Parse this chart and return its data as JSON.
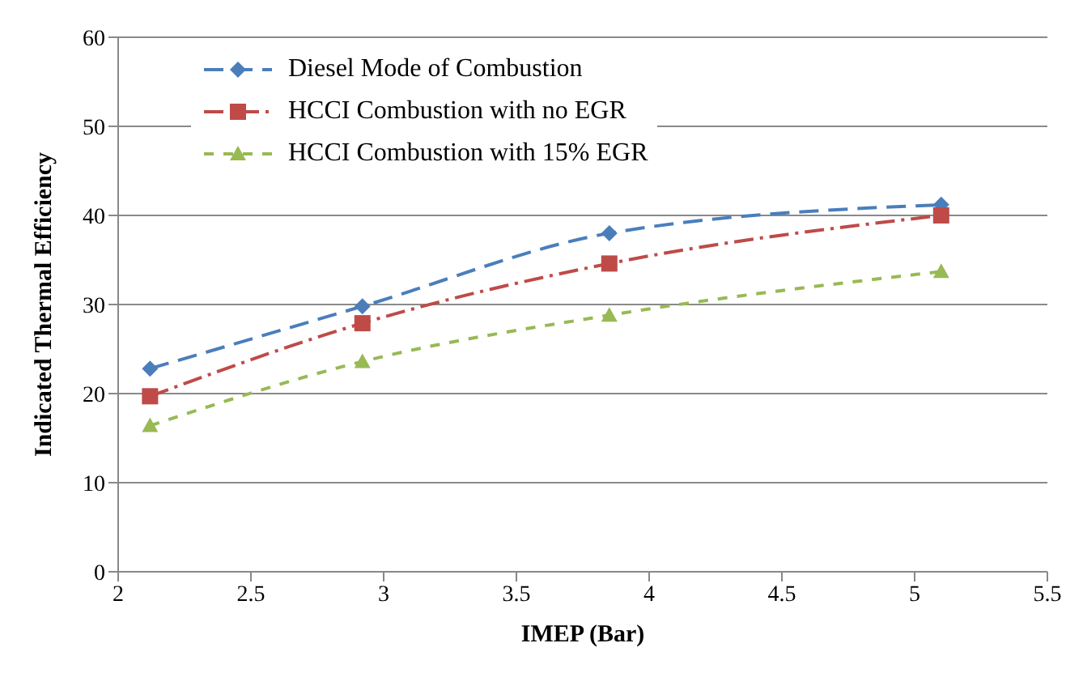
{
  "chart_data": {
    "type": "line",
    "xlabel": "IMEP (Bar)",
    "ylabel": "Indicated Thermal Efficiency",
    "x": [
      2.12,
      2.92,
      3.85,
      5.1
    ],
    "series": [
      {
        "name": "Diesel Mode of Combustion",
        "color": "#4a7ebb",
        "values": [
          22.8,
          29.8,
          38,
          41.2
        ],
        "marker": "diamond",
        "line_style": "dashed"
      },
      {
        "name": "HCCI Combustion with no EGR",
        "color": "#be4b48",
        "values": [
          19.7,
          27.9,
          34.6,
          40
        ],
        "marker": "square",
        "line_style": "dashdot"
      },
      {
        "name": "HCCI Combustion with 15% EGR",
        "color": "#98b954",
        "values": [
          16.4,
          23.6,
          28.8,
          33.7
        ],
        "marker": "triangle",
        "line_style": "dotted"
      }
    ],
    "xlim": [
      2,
      5.5
    ],
    "xticks": [
      2,
      2.5,
      3,
      3.5,
      4,
      4.5,
      5,
      5.5
    ],
    "ylim": [
      0,
      60
    ],
    "yticks": [
      0,
      10,
      20,
      30,
      40,
      50,
      60
    ],
    "grid": "y",
    "legend": "top left"
  }
}
